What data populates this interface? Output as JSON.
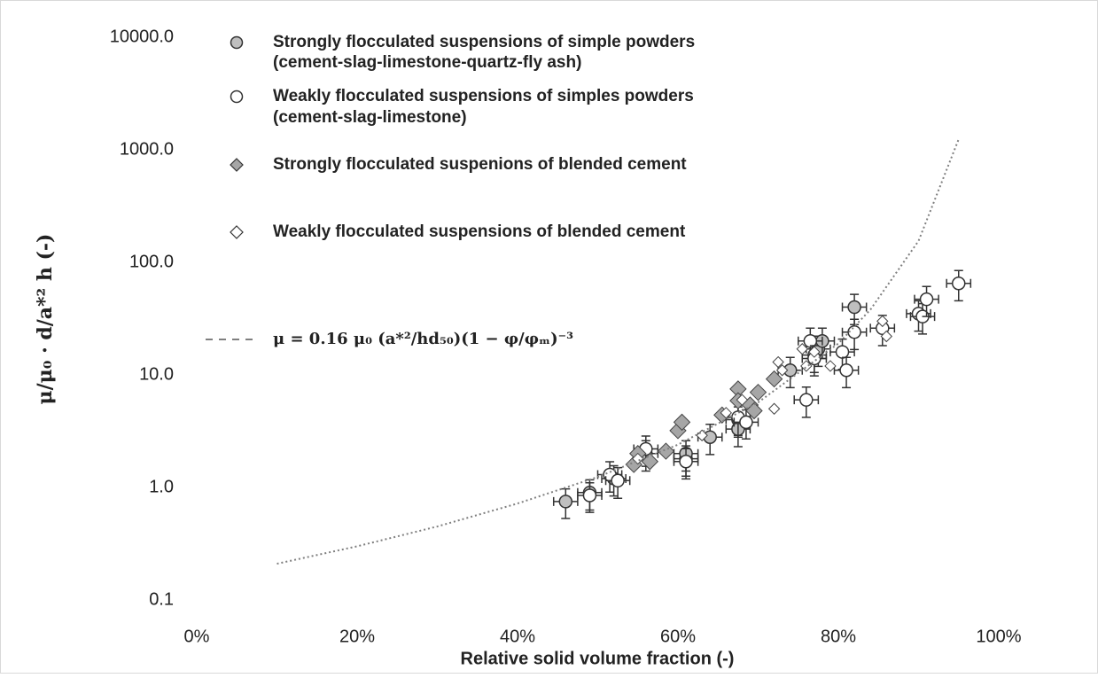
{
  "chart_data": {
    "type": "scatter",
    "x_label": "Relative solid volume fraction (-)",
    "y_label": "μ/μ₀ · d/a*² h (-)",
    "log_y": true,
    "xlim": [
      0,
      100
    ],
    "ylim": [
      0.1,
      10000
    ],
    "xticks": [
      {
        "value": 0,
        "label": "0%"
      },
      {
        "value": 20,
        "label": "20%"
      },
      {
        "value": 40,
        "label": "40%"
      },
      {
        "value": 60,
        "label": "60%"
      },
      {
        "value": 80,
        "label": "80%"
      },
      {
        "value": 100,
        "label": "100%"
      }
    ],
    "yticks": [
      {
        "value": 0.1,
        "label": "0.1"
      },
      {
        "value": 1,
        "label": "1.0"
      },
      {
        "value": 10,
        "label": "10.0"
      },
      {
        "value": 100,
        "label": "100.0"
      },
      {
        "value": 1000,
        "label": "1000.0"
      },
      {
        "value": 10000,
        "label": "10000.0"
      }
    ],
    "series": [
      {
        "name": [
          "Strongly flocculated suspensions of simple powders",
          "(cement-slag-limestone-quartz-fly ash)"
        ],
        "marker": "circle",
        "color": "#bfbfbf",
        "x": [
          46,
          49,
          52,
          56,
          61,
          61,
          64,
          67.5,
          67.5,
          74,
          77,
          77.5,
          78,
          82
        ],
        "values": [
          0.75,
          0.9,
          1.2,
          2.0,
          1.8,
          2.0,
          2.8,
          4.0,
          3.3,
          11,
          15,
          17,
          20,
          40
        ],
        "xerr": 1.5,
        "yerr": [
          0.22,
          0.27,
          0.36,
          0.6,
          0.54,
          0.6,
          0.84,
          1.2,
          1.0,
          3.3,
          4.5,
          5.1,
          6,
          12
        ]
      },
      {
        "name": [
          "Weakly flocculated suspensions of simples powders",
          "(cement-slag-limestone)"
        ],
        "marker": "circle",
        "color": "#ffffff",
        "x": [
          49,
          51.5,
          52.5,
          56,
          61,
          67.5,
          68.5,
          76,
          76.5,
          77,
          80.5,
          81,
          82,
          85.5,
          90,
          90.5,
          91,
          95
        ],
        "values": [
          0.85,
          1.3,
          1.15,
          2.2,
          1.7,
          4.2,
          3.8,
          6,
          20,
          14,
          16,
          11,
          24,
          26,
          35,
          33,
          47,
          65
        ],
        "xerr": 1.5,
        "yerr": [
          0.25,
          0.39,
          0.35,
          0.66,
          0.51,
          1.3,
          1.1,
          1.8,
          6,
          4.2,
          4.8,
          3.3,
          7.2,
          7.8,
          10.5,
          9.9,
          14,
          19.5
        ]
      },
      {
        "name": [
          "Strongly flocculated suspenions of blended cement"
        ],
        "marker": "diamond",
        "color": "#a6a6a6",
        "x": [
          54.5,
          55,
          56.5,
          58.5,
          60,
          60.5,
          65.5,
          67.5,
          67.5,
          69,
          69.5,
          70,
          72
        ],
        "values": [
          1.6,
          2.0,
          1.7,
          2.1,
          3.2,
          3.8,
          4.4,
          7.5,
          5.9,
          5.4,
          4.8,
          7.0,
          9.2
        ]
      },
      {
        "name": [
          "Weakly flocculated suspensions of blended cement"
        ],
        "marker": "diamond",
        "color": "#ffffff",
        "x": [
          55,
          63,
          66,
          68,
          72,
          72.5,
          73,
          75.5,
          76,
          77,
          79,
          85.5,
          86
        ],
        "values": [
          1.8,
          2.9,
          4.6,
          6,
          5.0,
          13,
          11,
          17,
          12,
          16,
          12,
          30,
          22
        ]
      },
      {
        "name": [
          "μ = 0.16 μ₀ (a*²/hd₅₀)(1 − φ/φₘ)⁻³"
        ],
        "marker": "line",
        "color": "#7f7f7f",
        "x": [
          10,
          20,
          30,
          40,
          50,
          60,
          70,
          80,
          84,
          90,
          95
        ],
        "values": [
          0.21,
          0.3,
          0.45,
          0.72,
          1.24,
          2.4,
          5.7,
          19,
          38,
          155,
          1240
        ]
      }
    ]
  }
}
